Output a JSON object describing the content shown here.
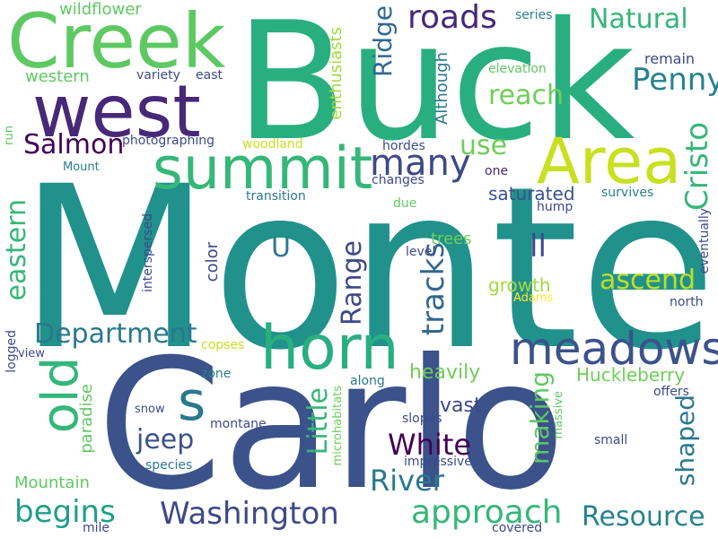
{
  "words": {
    "monte": {
      "text": "Monte",
      "color": "#21918c"
    },
    "carlo": {
      "text": "Carlo",
      "color": "#3b528b"
    },
    "buck": {
      "text": "Buck",
      "color": "#29af7f"
    },
    "creek": {
      "text": "Creek",
      "color": "#5ec962"
    },
    "west": {
      "text": "west",
      "color": "#482878"
    },
    "summit": {
      "text": "summit",
      "color": "#35b779"
    },
    "area": {
      "text": "Area",
      "color": "#c8e020"
    },
    "horn": {
      "text": "horn",
      "color": "#29af7f"
    },
    "meadows": {
      "text": "meadows",
      "color": "#3b528b"
    },
    "old": {
      "text": "old",
      "color": "#35b779"
    },
    "s": {
      "text": "s",
      "color": "#2a788e"
    },
    "many": {
      "text": "many",
      "color": "#3e4989"
    },
    "roads": {
      "text": "roads",
      "color": "#482878"
    },
    "natural": {
      "text": "Natural",
      "color": "#35b779"
    },
    "reach": {
      "text": "reach",
      "color": "#6ece58"
    },
    "penny": {
      "text": "Penny",
      "color": "#26828e"
    },
    "ridge": {
      "text": "Ridge",
      "color": "#31688e"
    },
    "cristo": {
      "text": "Cristo",
      "color": "#35b779"
    },
    "use": {
      "text": "use",
      "color": "#6ece58"
    },
    "salmon": {
      "text": "Salmon",
      "color": "#440154"
    },
    "department": {
      "text": "Department",
      "color": "#2a788e"
    },
    "washington": {
      "text": "Washington",
      "color": "#3e4989"
    },
    "begins": {
      "text": "begins",
      "color": "#1f9e89"
    },
    "approach": {
      "text": "approach",
      "color": "#35b779"
    },
    "resource": {
      "text": "Resource",
      "color": "#26828e"
    },
    "river": {
      "text": "River",
      "color": "#2a788e"
    },
    "white": {
      "text": "White",
      "color": "#440154"
    },
    "jeep": {
      "text": "jeep",
      "color": "#3b528b"
    },
    "little": {
      "text": "Little",
      "color": "#35b779"
    },
    "range": {
      "text": "Range",
      "color": "#3e4989"
    },
    "tracks": {
      "text": "tracks",
      "color": "#31688e"
    },
    "eastern": {
      "text": "eastern",
      "color": "#35b779"
    },
    "ascend": {
      "text": "ascend",
      "color": "#bddf26"
    },
    "ll": {
      "text": "ll",
      "color": "#3e4989"
    },
    "u": {
      "text": "U",
      "color": "#2a788e"
    },
    "saturated": {
      "text": "saturated",
      "color": "#3b528b"
    },
    "huckleberry": {
      "text": "Huckleberry",
      "color": "#6ece58"
    },
    "heavily": {
      "text": "heavily",
      "color": "#6ece58"
    },
    "vast": {
      "text": "vast",
      "color": "#3e4989"
    },
    "making": {
      "text": "making",
      "color": "#5ec962"
    },
    "shaped": {
      "text": "shaped",
      "color": "#2a788e"
    },
    "mountain": {
      "text": "Mountain",
      "color": "#5ec962"
    },
    "trees": {
      "text": "trees",
      "color": "#6ece58"
    },
    "growth": {
      "text": "growth",
      "color": "#a0da39"
    },
    "color": {
      "text": "color",
      "color": "#3e4989"
    },
    "enthusiasts": {
      "text": "enthusiasts",
      "color": "#a0da39"
    },
    "although": {
      "text": "Although",
      "color": "#2a788e"
    },
    "wildflower": {
      "text": "wildflower",
      "color": "#5ec962"
    },
    "western": {
      "text": "western",
      "color": "#5ec962"
    },
    "variety": {
      "text": "variety",
      "color": "#3e4989"
    },
    "east": {
      "text": "east",
      "color": "#3e4989"
    },
    "photographing": {
      "text": "photographing",
      "color": "#3e4989"
    },
    "woodland": {
      "text": "woodland",
      "color": "#c8e020"
    },
    "mount": {
      "text": "Mount",
      "color": "#26828e"
    },
    "run": {
      "text": "run",
      "color": "#5ec962"
    },
    "series": {
      "text": "series",
      "color": "#26828e"
    },
    "elevation": {
      "text": "elevation",
      "color": "#5ec962"
    },
    "remain": {
      "text": "remain",
      "color": "#3e4989"
    },
    "hordes": {
      "text": "hordes",
      "color": "#3e4989"
    },
    "one": {
      "text": "one",
      "color": "#482878"
    },
    "changes": {
      "text": "changes",
      "color": "#3e4989"
    },
    "survives": {
      "text": "survives",
      "color": "#26828e"
    },
    "transition": {
      "text": "transition",
      "color": "#2a788e"
    },
    "due": {
      "text": "due",
      "color": "#5ec962"
    },
    "hump": {
      "text": "hump",
      "color": "#3e4989"
    },
    "level": {
      "text": "level",
      "color": "#3e4989"
    },
    "adams": {
      "text": "Adams",
      "color": "#fde725"
    },
    "north": {
      "text": "north",
      "color": "#3e4989"
    },
    "eventually": {
      "text": "eventually",
      "color": "#3e4989"
    },
    "interspersed": {
      "text": "interspersed",
      "color": "#3e4989"
    },
    "logged": {
      "text": "logged",
      "color": "#3e4989"
    },
    "view": {
      "text": "view",
      "color": "#3e4989"
    },
    "copses": {
      "text": "copses",
      "color": "#c8e020"
    },
    "zone": {
      "text": "zone",
      "color": "#26828e"
    },
    "along": {
      "text": "along",
      "color": "#2a788e"
    },
    "microhabitats": {
      "text": "microhabitats",
      "color": "#6ece58"
    },
    "paradise": {
      "text": "paradise",
      "color": "#5ec962"
    },
    "snow": {
      "text": "snow",
      "color": "#3e4989"
    },
    "montane": {
      "text": "montane",
      "color": "#3e4989"
    },
    "species": {
      "text": "species",
      "color": "#2a788e"
    },
    "slopes": {
      "text": "slopes",
      "color": "#3e4989"
    },
    "impressive": {
      "text": "impressive",
      "color": "#3e4989"
    },
    "massive": {
      "text": "massive",
      "color": "#5ec962"
    },
    "offers": {
      "text": "offers",
      "color": "#3e4989"
    },
    "small": {
      "text": "small",
      "color": "#3e4989"
    },
    "mile": {
      "text": "mile",
      "color": "#3e4989"
    },
    "covered": {
      "text": "covered",
      "color": "#3e4989"
    }
  }
}
